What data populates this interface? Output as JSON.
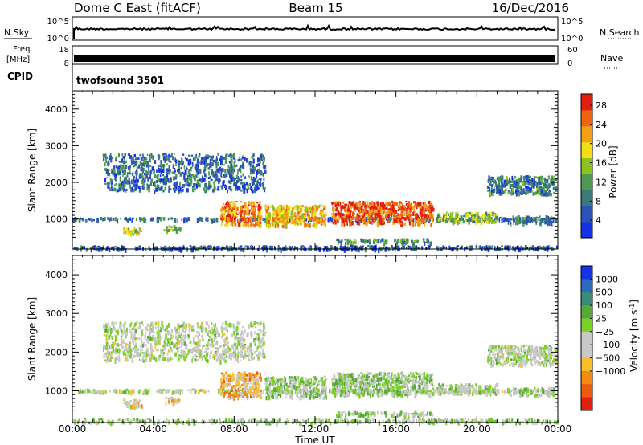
{
  "header": {
    "station": "Dome C East (fitACF)",
    "beam": "Beam 15",
    "date": "16/Dec/2016"
  },
  "strips": {
    "nsky_label": "N.Sky",
    "nsky_ticks": [
      "10^5",
      "10^0"
    ],
    "nsearch_label": "N.Search",
    "nsearch_ticks": [
      "10^5",
      "10^0"
    ],
    "freq_label_line1": "Freq.",
    "freq_label_line2": "[MHz]",
    "freq_ticks": [
      "18",
      "8"
    ],
    "nave_label": "Nave",
    "nave_ticks": [
      "60",
      "0"
    ],
    "cpid_label": "CPID",
    "cpid_value": "twofsound 3501"
  },
  "axes": {
    "x_label": "Time UT",
    "x_ticks": [
      "00:00",
      "04:00",
      "08:00",
      "12:00",
      "16:00",
      "20:00",
      "00:00"
    ],
    "y_label": "Slant Range [km]",
    "y_ticks": [
      "1000",
      "2000",
      "3000",
      "4000"
    ]
  },
  "colorbars": {
    "power": {
      "label": "Power [dB]",
      "ticks": [
        "4",
        "8",
        "12",
        "16",
        "20",
        "24",
        "28"
      ],
      "colors": [
        "#1432e6",
        "#2a52b8",
        "#3b7a78",
        "#4e9a52",
        "#8cc21e",
        "#f2de14",
        "#f5a014",
        "#ef6410",
        "#e31e0c"
      ]
    },
    "velocity": {
      "label": "Velocity [m s",
      "label_sup": "-1",
      "label_close": "]",
      "ticks": [
        "1000",
        "500",
        "100",
        "25",
        "−25",
        "−100",
        "−500",
        "−1000"
      ],
      "colors": [
        "#1432e6",
        "#2a6abf",
        "#3b8a7a",
        "#55a83a",
        "#7cd028",
        "#c8c8c8",
        "#c8c8c8",
        "#f7c02a",
        "#f38a14",
        "#eb5a0e",
        "#e31e0c"
      ]
    }
  },
  "chart_data": [
    {
      "type": "heatmap",
      "title": "Power",
      "xlabel": "Time UT",
      "ylabel": "Slant Range [km]",
      "xlim": [
        0,
        24
      ],
      "ylim": [
        180,
        4500
      ],
      "colorbar": {
        "label": "Power [dB]",
        "range": [
          0,
          30
        ]
      },
      "regions": [
        {
          "t": [
            0.0,
            24.0
          ],
          "r": [
            990,
            1060
          ],
          "value": 6
        },
        {
          "t": [
            0.0,
            24.0
          ],
          "r": [
            200,
            290
          ],
          "value": 5
        },
        {
          "t": [
            2.5,
            3.4
          ],
          "r": [
            600,
            800
          ],
          "value": 18
        },
        {
          "t": [
            4.5,
            5.3
          ],
          "r": [
            700,
            850
          ],
          "value": 14
        },
        {
          "t": [
            7.3,
            9.3
          ],
          "r": [
            850,
            1500
          ],
          "value": 24
        },
        {
          "t": [
            9.5,
            12.5
          ],
          "r": [
            850,
            1400
          ],
          "value": 20
        },
        {
          "t": [
            12.8,
            17.8
          ],
          "r": [
            900,
            1500
          ],
          "value": 26
        },
        {
          "t": [
            18.0,
            21.0
          ],
          "r": [
            950,
            1200
          ],
          "value": 14
        },
        {
          "t": [
            21.5,
            23.8
          ],
          "r": [
            900,
            1100
          ],
          "value": 10
        },
        {
          "t": [
            13.0,
            17.8
          ],
          "r": [
            380,
            480
          ],
          "value": 10
        },
        {
          "t": [
            13.0,
            15.0
          ],
          "r": [
            200,
            300
          ],
          "value": 3
        },
        {
          "t": [
            1.5,
            9.5
          ],
          "r": [
            1800,
            2800
          ],
          "value": 7
        },
        {
          "t": [
            20.5,
            23.9
          ],
          "r": [
            1700,
            2200
          ],
          "value": 8
        }
      ]
    },
    {
      "type": "heatmap",
      "title": "Velocity",
      "xlabel": "Time UT",
      "ylabel": "Slant Range [km]",
      "xlim": [
        0,
        24
      ],
      "ylim": [
        180,
        4500
      ],
      "colorbar": {
        "label": "Velocity [m s-1]",
        "range": [
          -1000,
          1000
        ]
      },
      "regions": [
        {
          "t": [
            0.0,
            24.0
          ],
          "r": [
            990,
            1060
          ],
          "value": 0
        },
        {
          "t": [
            0.0,
            24.0
          ],
          "r": [
            200,
            290
          ],
          "value": 100
        },
        {
          "t": [
            2.5,
            3.4
          ],
          "r": [
            600,
            800
          ],
          "value": -200
        },
        {
          "t": [
            4.5,
            5.3
          ],
          "r": [
            700,
            850
          ],
          "value": -300
        },
        {
          "t": [
            7.3,
            9.3
          ],
          "r": [
            850,
            1500
          ],
          "value": -400
        },
        {
          "t": [
            9.5,
            12.5
          ],
          "r": [
            850,
            1400
          ],
          "value": 100
        },
        {
          "t": [
            12.8,
            17.8
          ],
          "r": [
            900,
            1500
          ],
          "value": 150
        },
        {
          "t": [
            18.0,
            21.0
          ],
          "r": [
            950,
            1200
          ],
          "value": 60
        },
        {
          "t": [
            21.5,
            23.8
          ],
          "r": [
            900,
            1100
          ],
          "value": 80
        },
        {
          "t": [
            13.0,
            17.8
          ],
          "r": [
            380,
            480
          ],
          "value": 120
        },
        {
          "t": [
            1.5,
            9.5
          ],
          "r": [
            1800,
            2800
          ],
          "value": 0
        },
        {
          "t": [
            20.5,
            23.9
          ],
          "r": [
            1700,
            2200
          ],
          "value": 0
        }
      ]
    }
  ]
}
